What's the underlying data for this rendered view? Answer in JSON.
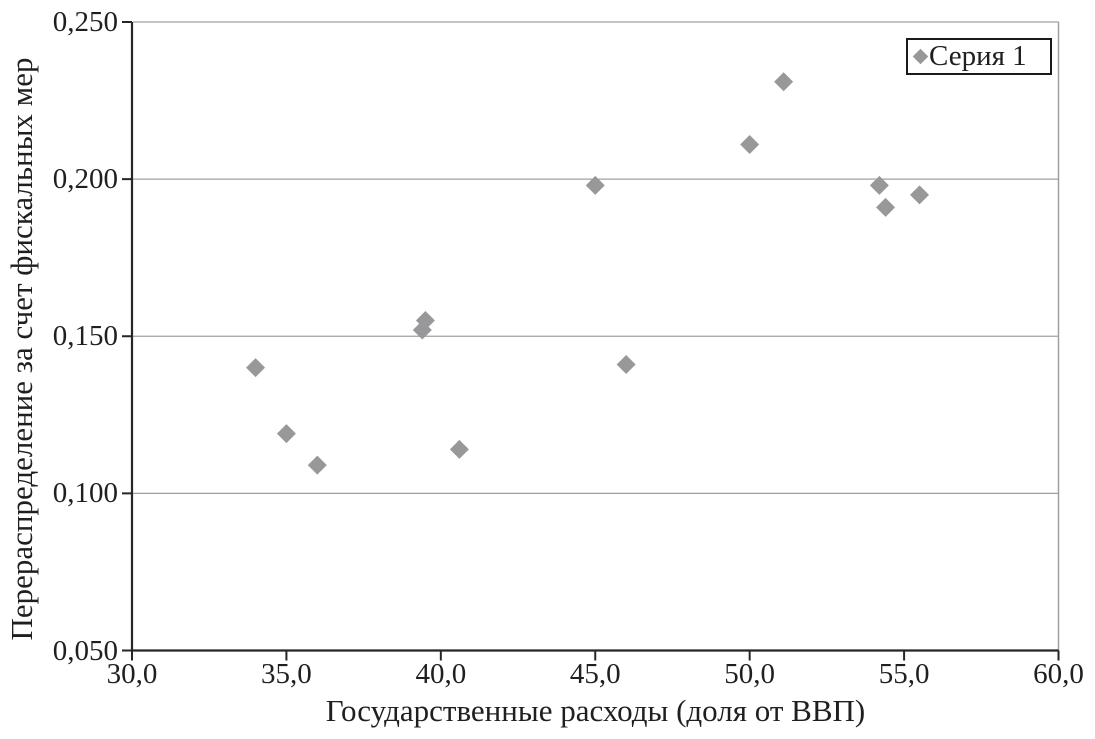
{
  "chart_data": {
    "type": "scatter",
    "title": "",
    "xlabel": "Государственные расходы (доля от ВВП)",
    "ylabel": "Перераспределение за счет фискальных мер",
    "xlim": [
      30.0,
      60.0
    ],
    "ylim": [
      0.05,
      0.25
    ],
    "grid": "horizontal-gridlines-on",
    "legend_position": "top-right",
    "x_ticks": [
      {
        "value": 30.0,
        "label": "30,0"
      },
      {
        "value": 35.0,
        "label": "35,0"
      },
      {
        "value": 40.0,
        "label": "40,0"
      },
      {
        "value": 45.0,
        "label": "45,0"
      },
      {
        "value": 50.0,
        "label": "50,0"
      },
      {
        "value": 55.0,
        "label": "55,0"
      },
      {
        "value": 60.0,
        "label": "60,0"
      }
    ],
    "y_ticks": [
      {
        "value": 0.05,
        "label": "0,050"
      },
      {
        "value": 0.1,
        "label": "0,100"
      },
      {
        "value": 0.15,
        "label": "0,150"
      },
      {
        "value": 0.2,
        "label": "0,200"
      },
      {
        "value": 0.25,
        "label": "0,250"
      }
    ],
    "series": [
      {
        "name": "Серия 1",
        "marker": "diamond",
        "color": "#98989a",
        "points": [
          [
            34.0,
            0.14
          ],
          [
            35.0,
            0.119
          ],
          [
            36.0,
            0.109
          ],
          [
            39.4,
            0.152
          ],
          [
            39.5,
            0.155
          ],
          [
            40.6,
            0.114
          ],
          [
            45.0,
            0.198
          ],
          [
            46.0,
            0.141
          ],
          [
            50.0,
            0.211
          ],
          [
            51.1,
            0.231
          ],
          [
            54.2,
            0.198
          ],
          [
            54.4,
            0.191
          ],
          [
            55.5,
            0.195
          ]
        ]
      }
    ],
    "colors": {
      "marker": "#98989a",
      "gridline": "#a0a0a0",
      "axis": "#262626",
      "text": "#1f1f1f",
      "background": "#ffffff",
      "legend_border": "#1a1a1a"
    }
  }
}
